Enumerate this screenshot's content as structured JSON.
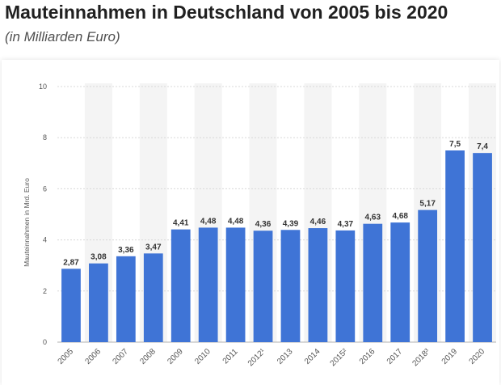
{
  "header": {
    "title": "Mauteinnahmen in Deutschland von 2005 bis 2020",
    "subtitle": "(in Milliarden Euro)"
  },
  "chart_data": {
    "type": "bar",
    "title": "Mauteinnahmen in Deutschland von 2005 bis 2020",
    "subtitle": "(in Milliarden Euro)",
    "xlabel": "",
    "ylabel": "Mauteinnahmen in Mrd. Euro",
    "ylim": [
      0,
      10
    ],
    "yticks": [
      0,
      2,
      4,
      6,
      8,
      10
    ],
    "grid": true,
    "bar_color": "#3f74d6",
    "band_color": "#f4f4f4",
    "categories": [
      "2005",
      "2006",
      "2007",
      "2008",
      "2009",
      "2010",
      "2011",
      "2012¹",
      "2013",
      "2014",
      "2015²",
      "2016",
      "2017",
      "2018³",
      "2019",
      "2020"
    ],
    "values": [
      2.87,
      3.08,
      3.36,
      3.47,
      4.41,
      4.48,
      4.48,
      4.36,
      4.39,
      4.46,
      4.37,
      4.63,
      4.68,
      5.17,
      7.5,
      7.4
    ],
    "value_labels": [
      "2,87",
      "3,08",
      "3,36",
      "3,47",
      "4,41",
      "4,48",
      "4,48",
      "4,36",
      "4,39",
      "4,46",
      "4,37",
      "4,63",
      "4,68",
      "5,17",
      "7,5",
      "7,4"
    ]
  }
}
